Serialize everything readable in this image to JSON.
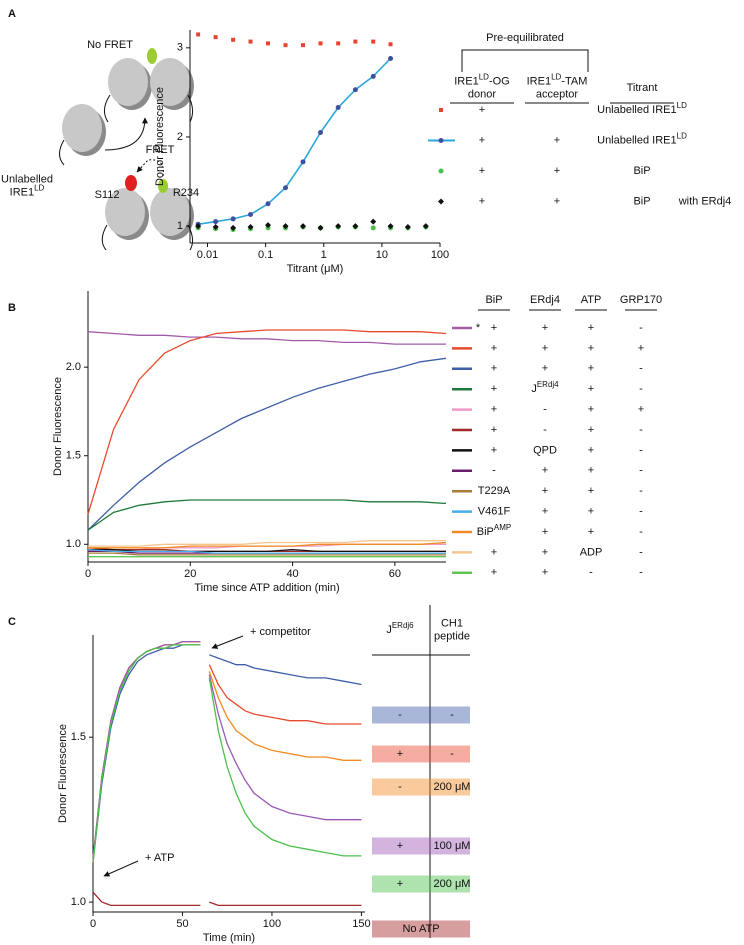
{
  "panels": [
    "A",
    "B",
    "C"
  ],
  "diagram": {
    "no_fret": "No FRET",
    "unlabelled": {
      "lines": [
        "Unlabelled",
        [
          "IRE1",
          {
            "sup": "LD"
          }
        ]
      ]
    },
    "fret": "FRET",
    "s112": "S112",
    "r234": "R234"
  },
  "chart_data": [
    {
      "type": "scatter",
      "ylabel": "Donor Fluorescence",
      "xlabel": "Titrant (μM)",
      "xscale": "log",
      "xlim": [
        0.005,
        100
      ],
      "ylim": [
        0.81,
        3.2
      ],
      "xticks": [
        0.01,
        0.1,
        1,
        10,
        100
      ],
      "yticks": [
        1,
        2,
        3
      ],
      "series": [
        {
          "color": "#e8432e",
          "marker": "square",
          "x": [
            0.0069,
            0.0138,
            0.0276,
            0.055,
            0.11,
            0.22,
            0.44,
            0.88,
            1.77,
            3.5,
            7.1,
            14.1
          ],
          "values": [
            3.15,
            3.12,
            3.09,
            3.07,
            3.05,
            3.03,
            3.03,
            3.05,
            3.05,
            3.07,
            3.07,
            3.04
          ]
        },
        {
          "color": "#2aa7d8",
          "marker_color": "#4050a0",
          "marker": "circle",
          "line": true,
          "x": [
            0.0069,
            0.0138,
            0.0276,
            0.055,
            0.11,
            0.22,
            0.44,
            0.88,
            1.77,
            3.5,
            7.1,
            14.1
          ],
          "values": [
            1.02,
            1.05,
            1.08,
            1.13,
            1.25,
            1.43,
            1.72,
            2.05,
            2.33,
            2.53,
            2.68,
            2.88
          ]
        },
        {
          "color": "#4bbf4b",
          "marker": "circle",
          "x": [
            0.0069,
            0.0138,
            0.0276,
            0.055,
            0.11,
            0.22,
            0.44,
            0.88,
            1.77,
            3.5,
            7.1,
            14.1,
            28,
            57
          ],
          "values": [
            0.98,
            0.97,
            0.96,
            0.97,
            0.98,
            0.98,
            0.99,
            0.98,
            0.99,
            0.99,
            0.98,
            0.98,
            0.98,
            0.99
          ]
        },
        {
          "color": "#111111",
          "marker": "diamond",
          "x": [
            0.0069,
            0.0138,
            0.0276,
            0.055,
            0.11,
            0.22,
            0.44,
            0.88,
            1.77,
            3.5,
            7.1,
            14.1,
            28,
            57
          ],
          "values": [
            1.0,
            0.99,
            0.98,
            0.99,
            1.01,
            1.0,
            1.0,
            0.98,
            1.0,
            1.0,
            1.05,
            1.0,
            0.99,
            1.0
          ]
        }
      ],
      "legend": {
        "group": "Pre-equilibrated",
        "columns": [
          {
            "lines": [
              [
                "IRE1",
                {
                  "sup": "LD"
                },
                "-OG"
              ],
              "donor"
            ]
          },
          {
            "lines": [
              [
                "IRE1",
                {
                  "sup": "LD"
                },
                "-TAM"
              ],
              "acceptor"
            ]
          },
          "Titrant"
        ],
        "rows": [
          {
            "donor": "+",
            "titrant": [
              "Unlabelled IRE1",
              {
                "sup": "LD"
              }
            ]
          },
          {
            "donor": "+",
            "acceptor": "+",
            "titrant": [
              "Unlabelled IRE1",
              {
                "sup": "LD"
              }
            ]
          },
          {
            "donor": "+",
            "acceptor": "+",
            "titrant": "BiP"
          },
          {
            "donor": "+",
            "acceptor": "+",
            "titrant": "BiP",
            "note": "with ERdj4"
          }
        ]
      }
    },
    {
      "type": "line",
      "ylabel": "Donor Fluorescence",
      "xlabel": "Time since ATP addition (min)",
      "xlim": [
        0,
        70
      ],
      "ylim": [
        0.9,
        2.43
      ],
      "xticks": [
        0,
        20,
        40,
        60
      ],
      "yticks": [
        {
          "value": 1,
          "label": "1.0"
        },
        {
          "value": 1.5,
          "label": "1.5"
        },
        {
          "value": 2,
          "label": "2.0"
        }
      ],
      "x": [
        0,
        5,
        10,
        15,
        20,
        25,
        30,
        35,
        40,
        45,
        50,
        55,
        60,
        65,
        70
      ],
      "series": [
        {
          "color": "#a25ba8",
          "values": [
            2.2,
            2.19,
            2.18,
            2.18,
            2.17,
            2.17,
            2.16,
            2.16,
            2.15,
            2.15,
            2.14,
            2.14,
            2.13,
            2.13,
            2.13
          ]
        },
        {
          "color": "#e84a2e",
          "values": [
            1.17,
            1.65,
            1.93,
            2.08,
            2.15,
            2.19,
            2.2,
            2.21,
            2.21,
            2.21,
            2.21,
            2.2,
            2.2,
            2.2,
            2.19
          ]
        },
        {
          "color": "#3f5ea8",
          "values": [
            1.08,
            1.22,
            1.35,
            1.46,
            1.55,
            1.63,
            1.71,
            1.77,
            1.83,
            1.88,
            1.92,
            1.96,
            1.99,
            2.03,
            2.05
          ]
        },
        {
          "color": "#1e7a3c",
          "values": [
            1.08,
            1.18,
            1.22,
            1.24,
            1.25,
            1.25,
            1.25,
            1.25,
            1.25,
            1.25,
            1.25,
            1.24,
            1.24,
            1.24,
            1.23
          ]
        },
        {
          "color": "#f09ac8",
          "values": [
            0.96,
            0.97,
            0.97,
            0.98,
            0.98,
            0.98,
            0.99,
            0.99,
            0.99,
            0.99,
            1.0,
            1.0,
            1.0,
            1.0,
            1.0
          ]
        },
        {
          "color": "#a3282a",
          "values": [
            0.98,
            0.97,
            0.97,
            0.97,
            0.96,
            0.96,
            0.96,
            0.96,
            0.96,
            0.96,
            0.96,
            0.96,
            0.96,
            0.96,
            0.96
          ]
        },
        {
          "color": "#111111",
          "values": [
            0.97,
            0.97,
            0.96,
            0.96,
            0.96,
            0.96,
            0.96,
            0.96,
            0.97,
            0.96,
            0.96,
            0.96,
            0.96,
            0.96,
            0.96
          ]
        },
        {
          "color": "#6a1c6e",
          "values": [
            0.96,
            0.96,
            0.95,
            0.95,
            0.95,
            0.95,
            0.95,
            0.95,
            0.95,
            0.95,
            0.95,
            0.95,
            0.95,
            0.95,
            0.95
          ]
        },
        {
          "color": "#a67c3a",
          "values": [
            0.95,
            0.95,
            0.94,
            0.94,
            0.94,
            0.94,
            0.94,
            0.94,
            0.94,
            0.94,
            0.94,
            0.94,
            0.94,
            0.94,
            0.94
          ]
        },
        {
          "color": "#4aaee6",
          "values": [
            0.97,
            0.96,
            0.96,
            0.96,
            0.96,
            0.95,
            0.95,
            0.95,
            0.95,
            0.95,
            0.95,
            0.95,
            0.95,
            0.95,
            0.95
          ]
        },
        {
          "color": "#f28a22",
          "values": [
            0.98,
            0.98,
            0.98,
            0.98,
            0.99,
            0.99,
            0.99,
            0.99,
            0.99,
            1.0,
            1.0,
            1.0,
            1.0,
            1.0,
            1.01
          ]
        },
        {
          "color": "#f6c58e",
          "values": [
            0.99,
            0.99,
            0.99,
            1.0,
            1.0,
            1.0,
            1.0,
            1.01,
            1.01,
            1.01,
            1.01,
            1.02,
            1.02,
            1.02,
            1.02
          ]
        },
        {
          "color": "#62c454",
          "values": [
            0.93,
            0.93,
            0.93,
            0.93,
            0.93,
            0.93,
            0.93,
            0.93,
            0.93,
            0.93,
            0.93,
            0.93,
            0.93,
            0.93,
            0.93
          ]
        }
      ],
      "legend": {
        "columns": [
          "BiP",
          "ERdj4",
          "ATP",
          "GRP170"
        ],
        "rows": [
          {
            "mark": "*",
            "cells": [
              "+",
              "+",
              "+",
              "-"
            ]
          },
          {
            "cells": [
              "+",
              "+",
              "+",
              "+"
            ]
          },
          {
            "cells": [
              "+",
              "+",
              "+",
              "-"
            ]
          },
          {
            "cells": [
              "+",
              [
                "J",
                {
                  "sup": "ERdj4"
                }
              ],
              "+",
              "-"
            ]
          },
          {
            "cells": [
              "+",
              "-",
              "+",
              "+"
            ]
          },
          {
            "cells": [
              "+",
              "-",
              "+",
              "-"
            ]
          },
          {
            "cells": [
              "+",
              "QPD",
              "+",
              "-"
            ]
          },
          {
            "cells": [
              "-",
              "+",
              "+",
              "-"
            ]
          },
          {
            "cells": [
              "T229A",
              "+",
              "+",
              "-"
            ]
          },
          {
            "cells": [
              "V461F",
              "+",
              "+",
              "-"
            ]
          },
          {
            "cells": [
              [
                "BiP",
                {
                  "sup": "AMP"
                }
              ],
              "+",
              "+",
              "-"
            ]
          },
          {
            "cells": [
              "+",
              "+",
              "ADP",
              "-"
            ]
          },
          {
            "cells": [
              "+",
              "+",
              "-",
              "-"
            ]
          }
        ]
      }
    },
    {
      "type": "line",
      "ylabel": "Donor Fluorescence",
      "xlabel": "Time (min)",
      "xlim": [
        0,
        152
      ],
      "ylim": [
        0.97,
        1.81
      ],
      "xticks": [
        0,
        50,
        100,
        150
      ],
      "yticks": [
        {
          "value": 1,
          "label": "1.0"
        },
        {
          "value": 1.5,
          "label": "1.5"
        }
      ],
      "annotations": [
        "+ competitor",
        "+ ATP"
      ],
      "x": [
        0,
        5,
        10,
        15,
        20,
        25,
        30,
        35,
        40,
        45,
        50,
        55,
        60,
        62,
        65,
        70,
        75,
        80,
        85,
        90,
        100,
        110,
        120,
        130,
        140,
        150
      ],
      "series": [
        {
          "color": "#3f5ea8",
          "values": [
            1.12,
            1.36,
            1.53,
            1.63,
            1.69,
            1.73,
            1.75,
            1.76,
            1.77,
            1.77,
            1.78,
            1.78,
            1.78,
            null,
            1.75,
            1.74,
            1.73,
            1.72,
            1.72,
            1.71,
            1.7,
            1.69,
            1.68,
            1.68,
            1.67,
            1.66
          ]
        },
        {
          "color": "#e84a2e",
          "values": [
            1.13,
            1.38,
            1.55,
            1.65,
            1.71,
            1.74,
            1.76,
            1.77,
            1.78,
            1.78,
            1.79,
            1.79,
            1.79,
            null,
            1.72,
            1.66,
            1.62,
            1.6,
            1.58,
            1.57,
            1.56,
            1.55,
            1.55,
            1.54,
            1.54,
            1.54
          ]
        },
        {
          "color": "#f28a22",
          "values": [
            1.13,
            1.38,
            1.55,
            1.65,
            1.71,
            1.74,
            1.76,
            1.77,
            1.78,
            1.78,
            1.79,
            1.79,
            1.79,
            null,
            1.7,
            1.62,
            1.56,
            1.52,
            1.5,
            1.48,
            1.46,
            1.45,
            1.44,
            1.44,
            1.43,
            1.43
          ]
        },
        {
          "color": "#9b59b6",
          "values": [
            1.13,
            1.38,
            1.55,
            1.65,
            1.71,
            1.74,
            1.76,
            1.77,
            1.78,
            1.78,
            1.79,
            1.79,
            1.79,
            null,
            1.69,
            1.57,
            1.48,
            1.42,
            1.37,
            1.33,
            1.29,
            1.27,
            1.26,
            1.25,
            1.25,
            1.25
          ]
        },
        {
          "color": "#4cbf4c",
          "values": [
            1.12,
            1.37,
            1.54,
            1.64,
            1.7,
            1.74,
            1.76,
            1.77,
            1.77,
            1.78,
            1.78,
            1.78,
            1.78,
            null,
            1.68,
            1.52,
            1.41,
            1.33,
            1.27,
            1.23,
            1.19,
            1.17,
            1.16,
            1.15,
            1.14,
            1.14
          ]
        },
        {
          "color": "#a3282a",
          "values": [
            1.03,
            1.0,
            0.99,
            0.99,
            0.99,
            0.99,
            0.99,
            0.99,
            0.99,
            0.99,
            0.99,
            0.99,
            0.99,
            null,
            1.0,
            0.99,
            0.99,
            0.99,
            0.99,
            0.99,
            0.99,
            0.99,
            0.99,
            0.99,
            0.99,
            0.99
          ]
        }
      ],
      "legend": {
        "columns": [
          [
            "J",
            {
              "sup": "ERdj6"
            }
          ],
          {
            "lines": [
              "CH1",
              "peptide"
            ]
          }
        ],
        "rows": [
          {
            "cells": [
              "-",
              "-"
            ]
          },
          {
            "cells": [
              "+",
              "-"
            ]
          },
          {
            "cells": [
              "-",
              "200 μM"
            ]
          },
          {
            "cells": [
              "+",
              "100 μM"
            ]
          },
          {
            "cells": [
              "+",
              "200 μM"
            ]
          },
          {
            "label": "No ATP"
          }
        ]
      }
    }
  ]
}
